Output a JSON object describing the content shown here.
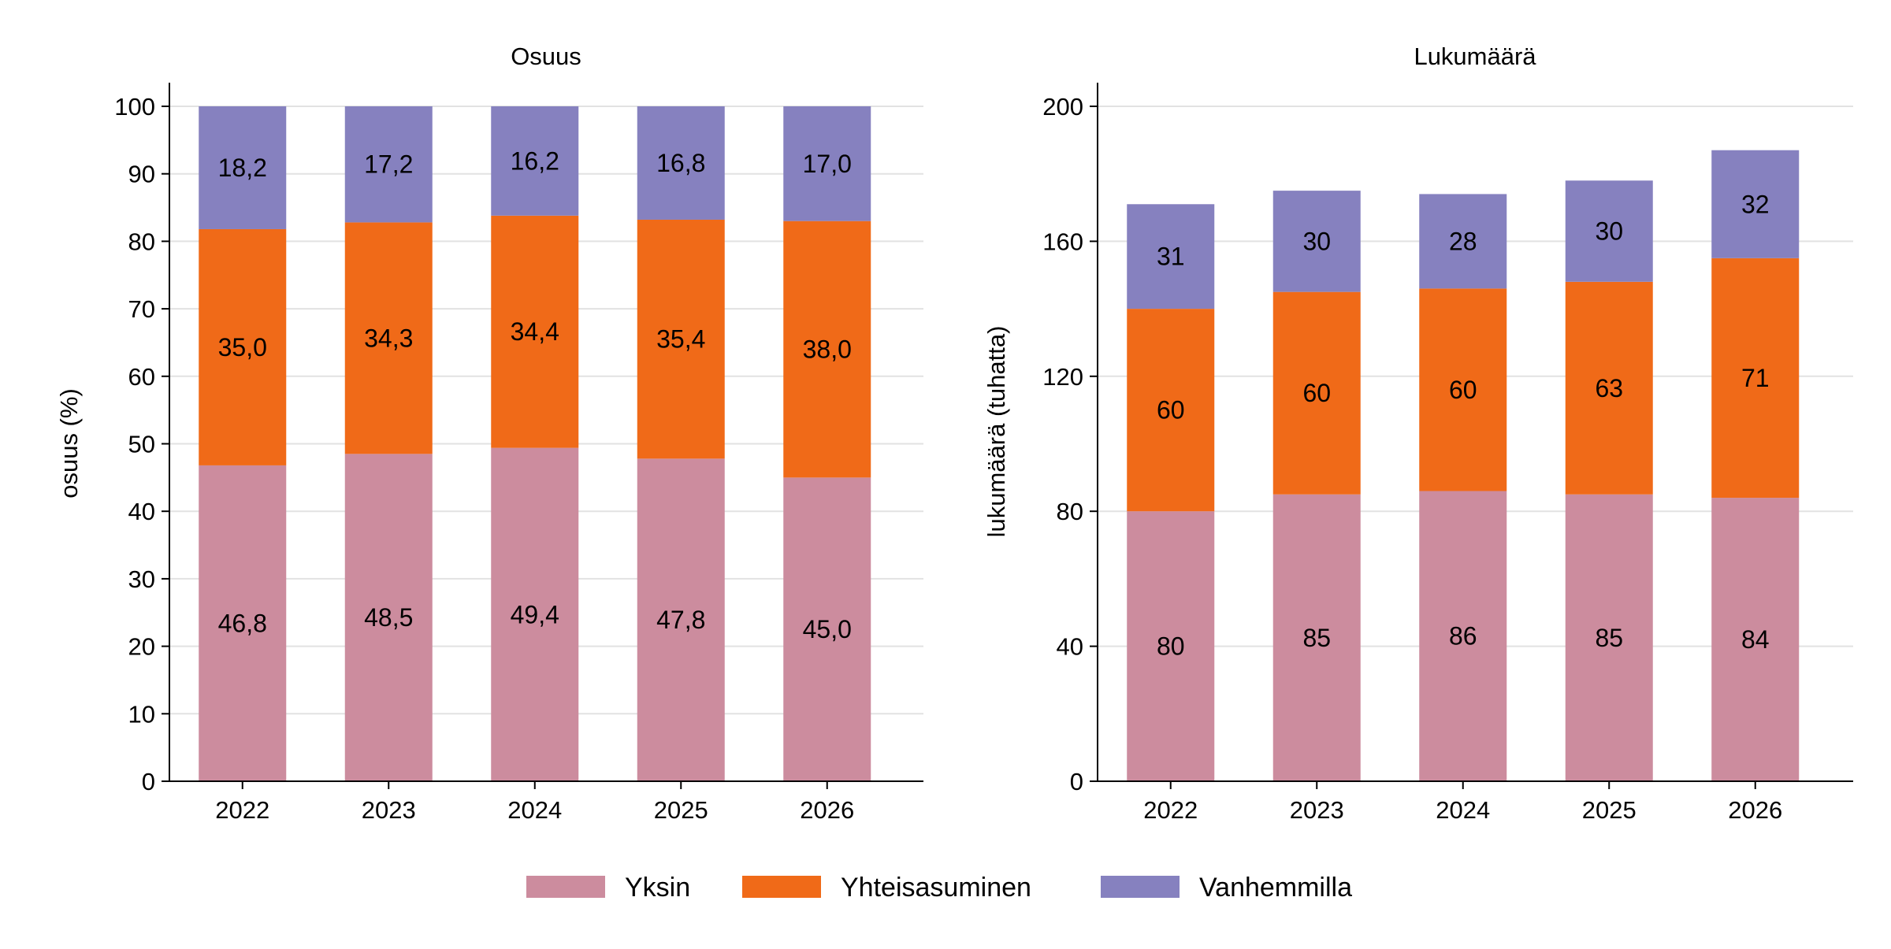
{
  "chart_data": [
    {
      "type": "bar",
      "stacked": true,
      "title": "Osuus",
      "xlabel": "",
      "ylabel": "osuus (%)",
      "categories": [
        "2022",
        "2023",
        "2024",
        "2025",
        "2026"
      ],
      "ylim": [
        0,
        100
      ],
      "yticks": [
        0,
        10,
        20,
        30,
        40,
        50,
        60,
        70,
        80,
        90,
        100
      ],
      "grid": true,
      "series": [
        {
          "name": "Yksin",
          "values": [
            46.8,
            48.5,
            49.4,
            47.8,
            45.0
          ],
          "labels": [
            "46,8",
            "48,5",
            "49,4",
            "47,8",
            "45,0"
          ]
        },
        {
          "name": "Yhteisasuminen",
          "values": [
            35.0,
            34.3,
            34.4,
            35.4,
            38.0
          ],
          "labels": [
            "35,0",
            "34,3",
            "34,4",
            "35,4",
            "38,0"
          ]
        },
        {
          "name": "Vanhemmilla",
          "values": [
            18.2,
            17.2,
            16.2,
            16.8,
            17.0
          ],
          "labels": [
            "18,2",
            "17,2",
            "16,2",
            "16,8",
            "17,0"
          ]
        }
      ]
    },
    {
      "type": "bar",
      "stacked": true,
      "title": "Lukumäärä",
      "xlabel": "",
      "ylabel": "lukumäärä (tuhatta)",
      "categories": [
        "2022",
        "2023",
        "2024",
        "2025",
        "2026"
      ],
      "ylim": [
        0,
        200
      ],
      "yticks": [
        0,
        40,
        80,
        120,
        160,
        200
      ],
      "grid": true,
      "series": [
        {
          "name": "Yksin",
          "values": [
            80,
            85,
            86,
            85,
            84
          ],
          "labels": [
            "80",
            "85",
            "86",
            "85",
            "84"
          ]
        },
        {
          "name": "Yhteisasuminen",
          "values": [
            60,
            60,
            60,
            63,
            71
          ],
          "labels": [
            "60",
            "60",
            "60",
            "63",
            "71"
          ]
        },
        {
          "name": "Vanhemmilla",
          "values": [
            31,
            30,
            28,
            30,
            32
          ],
          "labels": [
            "31",
            "30",
            "28",
            "30",
            "32"
          ]
        }
      ]
    }
  ],
  "legend": {
    "placement": "bottom",
    "items": [
      {
        "name": "Yksin",
        "color": "#cc8c9e"
      },
      {
        "name": "Yhteisasuminen",
        "color": "#f06a18"
      },
      {
        "name": "Vanhemmilla",
        "color": "#8681bf"
      }
    ]
  },
  "colors": {
    "Yksin": "#cc8c9e",
    "Yhteisasuminen": "#f06a18",
    "Vanhemmilla": "#8681bf",
    "grid": "#e2e2e2",
    "axis": "#000000"
  }
}
